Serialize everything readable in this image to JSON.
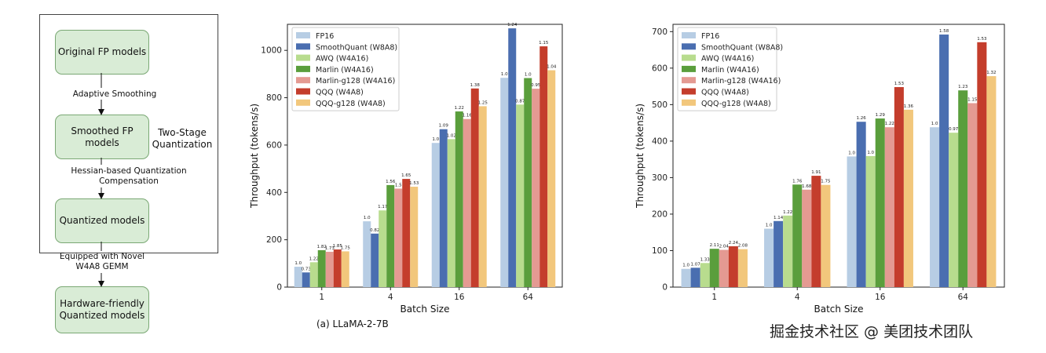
{
  "flowchart": {
    "nodes": [
      "Original FP models",
      "Smoothed FP models",
      "Quantized models",
      "Hardware-friendly\nQuantized models"
    ],
    "edges": [
      "Adaptive Smoothing",
      "Hessian-based Quantization\nCompensation",
      "Equipped with Novel\nW4A8 GEMM"
    ],
    "side_label": "Two-Stage\nQuantization"
  },
  "caption": "(a) LLaMA-2-7B",
  "watermark": "掘金技术社区 @ 美团技术团队",
  "colors": {
    "series": [
      "#b7cde4",
      "#4a6eb0",
      "#b8dc8e",
      "#5a9e3c",
      "#e49a92",
      "#c43d2c",
      "#f2c77c"
    ],
    "node_fill": "#d9ecd6",
    "node_border": "#7aa874"
  },
  "chart_data": [
    {
      "type": "bar",
      "xlabel": "Batch Size",
      "ylabel": "Throughput (tokens/s)",
      "categories": [
        "1",
        "4",
        "16",
        "64"
      ],
      "ylim": [
        0,
        1110
      ],
      "yticks": [
        0,
        200,
        400,
        600,
        800,
        1000
      ],
      "legend": "top-left",
      "series": [
        {
          "name": "FP16",
          "values": [
            86,
            278,
            609,
            884
          ],
          "labels": [
            "1.0",
            "1.0",
            "1.0",
            "1.0"
          ]
        },
        {
          "name": "SmoothQuant (W8A8)",
          "values": [
            62,
            226,
            667,
            1093
          ],
          "labels": [
            "0.73",
            "0.82",
            "1.09",
            "1.24"
          ]
        },
        {
          "name": "AWQ (W4A16)",
          "values": [
            105,
            324,
            625,
            771
          ],
          "labels": [
            "1.22",
            "1.17",
            "1.02",
            "0.87"
          ]
        },
        {
          "name": "Marlin (W4A16)",
          "values": [
            156,
            431,
            742,
            883
          ],
          "labels": [
            "1.82",
            "1.56",
            "1.22",
            "1.0"
          ]
        },
        {
          "name": "Marlin-g128 (W4A16)",
          "values": [
            149,
            416,
            710,
            838
          ],
          "labels": [
            "1.73",
            "1.5",
            "1.16",
            "0.95"
          ]
        },
        {
          "name": "QQQ (W4A8)",
          "values": [
            159,
            457,
            839,
            1017
          ],
          "labels": [
            "1.85",
            "1.65",
            "1.38",
            "1.15"
          ]
        },
        {
          "name": "QQQ-g128 (W4A8)",
          "values": [
            151,
            424,
            764,
            916
          ],
          "labels": [
            "1.75",
            "1.53",
            "1.25",
            "1.04"
          ]
        }
      ]
    },
    {
      "type": "bar",
      "xlabel": "Batch Size",
      "ylabel": "Throughput (tokens/s)",
      "categories": [
        "1",
        "4",
        "16",
        "64"
      ],
      "ylim": [
        0,
        720
      ],
      "yticks": [
        0,
        100,
        200,
        300,
        400,
        500,
        600,
        700
      ],
      "legend": "top-left",
      "series": [
        {
          "name": "FP16",
          "values": [
            50,
            160,
            358,
            438
          ],
          "labels": [
            "1.0",
            "1.0",
            "1.0",
            "1.0"
          ]
        },
        {
          "name": "SmoothQuant (W8A8)",
          "values": [
            53,
            181,
            453,
            692
          ],
          "labels": [
            "1.07",
            "1.14",
            "1.26",
            "1.58"
          ]
        },
        {
          "name": "AWQ (W4A16)",
          "values": [
            66,
            196,
            359,
            423
          ],
          "labels": [
            "1.33",
            "1.22",
            "1.0",
            "0.97"
          ]
        },
        {
          "name": "Marlin (W4A16)",
          "values": [
            105,
            281,
            462,
            539
          ],
          "labels": [
            "2.11",
            "1.76",
            "1.29",
            "1.23"
          ]
        },
        {
          "name": "Marlin-g128 (W4A16)",
          "values": [
            102,
            267,
            438,
            504
          ],
          "labels": [
            "2.04",
            "1.68",
            "1.22",
            "1.15"
          ]
        },
        {
          "name": "QQQ (W4A8)",
          "values": [
            112,
            305,
            548,
            671
          ],
          "labels": [
            "2.24",
            "1.91",
            "1.53",
            "1.53"
          ]
        },
        {
          "name": "QQQ-g128 (W4A8)",
          "values": [
            104,
            280,
            486,
            578
          ],
          "labels": [
            "2.08",
            "1.75",
            "1.36",
            "1.32"
          ]
        }
      ]
    }
  ]
}
